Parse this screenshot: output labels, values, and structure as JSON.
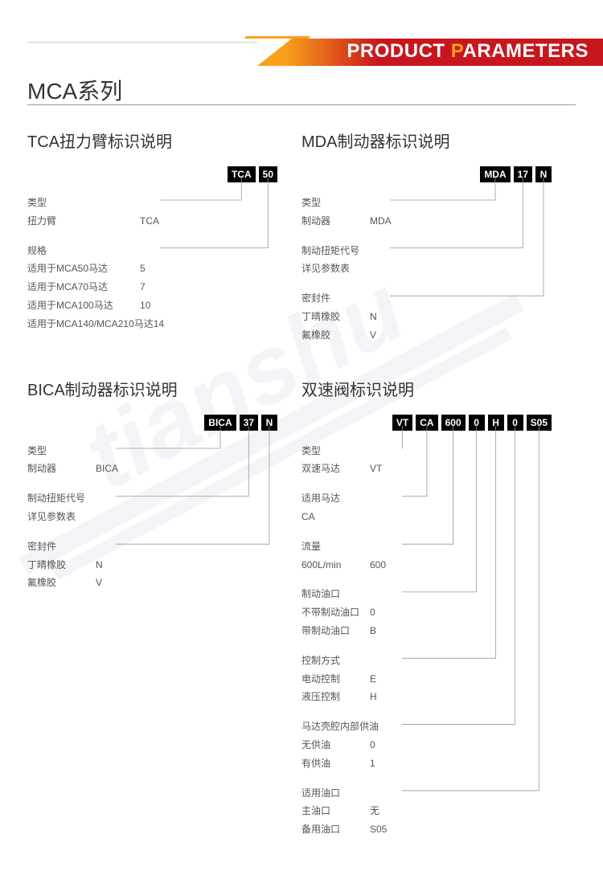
{
  "header": {
    "text1": "PRODUCT ",
    "text1b": "P",
    "text2": "ARAMETERS"
  },
  "page_title": "MCA系列",
  "colors": {
    "orange": "#f9a01b",
    "red": "#c8161d",
    "text": "#333333",
    "subtext": "#555555",
    "line": "#999999"
  },
  "sections": [
    {
      "title": "TCA扭力臂标识说明",
      "code": [
        "TCA",
        "50"
      ],
      "groups": [
        {
          "title": "类型",
          "rows": [
            {
              "label": "扭力臂",
              "value": "TCA"
            }
          ]
        },
        {
          "title": "规格",
          "rows": [
            {
              "label": "适用于MCA50马达",
              "value": "5"
            },
            {
              "label": "适用于MCA70马达",
              "value": "7"
            },
            {
              "label": "适用于MCA100马达",
              "value": "10"
            },
            {
              "label": "适用于MCA140/MCA210马达",
              "value": "14"
            }
          ]
        }
      ]
    },
    {
      "title": "MDA制动器标识说明",
      "code": [
        "MDA",
        "17",
        "N"
      ],
      "groups": [
        {
          "title": "类型",
          "rows": [
            {
              "label": "制动器",
              "value": "MDA"
            }
          ]
        },
        {
          "title": "制动扭矩代号",
          "rows": [
            {
              "label": "详见参数表",
              "value": ""
            }
          ]
        },
        {
          "title": "密封件",
          "rows": [
            {
              "label": "丁晴橡胶",
              "value": "N"
            },
            {
              "label": "氟橡胶",
              "value": "V"
            }
          ]
        }
      ]
    },
    {
      "title": "BICA制动器标识说明",
      "code": [
        "BICA",
        "37",
        "N"
      ],
      "groups": [
        {
          "title": "类型",
          "rows": [
            {
              "label": "制动器",
              "value": "BICA"
            }
          ]
        },
        {
          "title": "制动扭矩代号",
          "rows": [
            {
              "label": "详见参数表",
              "value": ""
            }
          ]
        },
        {
          "title": "密封件",
          "rows": [
            {
              "label": "丁晴橡胶",
              "value": "N"
            },
            {
              "label": "氟橡胶",
              "value": "V"
            }
          ]
        }
      ]
    },
    {
      "title": "双速阀标识说明",
      "code": [
        "VT",
        "CA",
        "600",
        "0",
        "H",
        "0",
        "S05"
      ],
      "groups": [
        {
          "title": "类型",
          "rows": [
            {
              "label": "双速马达",
              "value": "VT"
            }
          ]
        },
        {
          "title": "适用马达",
          "rows": [
            {
              "label": "CA",
              "value": ""
            }
          ]
        },
        {
          "title": "流量",
          "rows": [
            {
              "label": "600L/min",
              "value": "600"
            }
          ]
        },
        {
          "title": "制动油口",
          "rows": [
            {
              "label": "不带制动油口",
              "value": "0"
            },
            {
              "label": "带制动油口",
              "value": "B"
            }
          ]
        },
        {
          "title": "控制方式",
          "rows": [
            {
              "label": "电动控制",
              "value": "E"
            },
            {
              "label": "液压控制",
              "value": "H"
            }
          ]
        },
        {
          "title": "马达壳腔内部供油",
          "rows": [
            {
              "label": "无供油",
              "value": "0"
            },
            {
              "label": "有供油",
              "value": "1"
            }
          ]
        },
        {
          "title": "适用油口",
          "rows": [
            {
              "label": "主油口",
              "value": "无"
            },
            {
              "label": "备用油口",
              "value": "S05"
            }
          ]
        }
      ]
    }
  ]
}
